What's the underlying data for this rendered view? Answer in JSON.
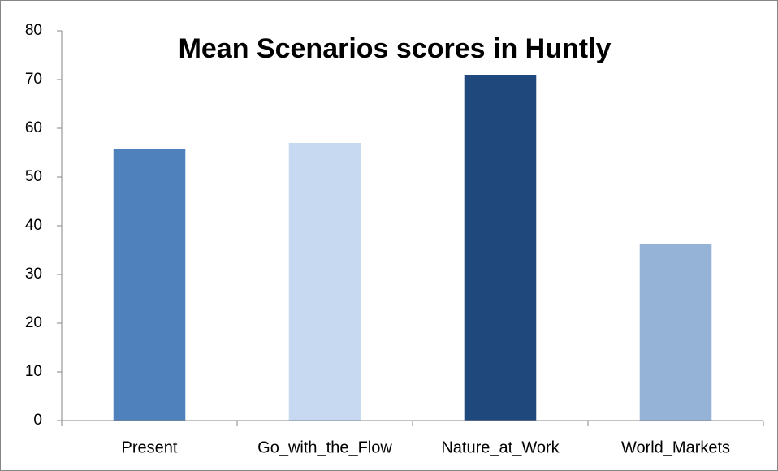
{
  "chart_data": {
    "type": "bar",
    "title": "Mean Scenarios scores in Huntly",
    "categories": [
      "Present",
      "Go_with_the_Flow",
      "Nature_at_Work",
      "World_Markets"
    ],
    "values": [
      55.8,
      57,
      71,
      36.3
    ],
    "colors": [
      "#4f81bd",
      "#c6d9f1",
      "#1f497d",
      "#95b3d7"
    ],
    "ylim": [
      0,
      80
    ],
    "yticks": [
      0,
      10,
      20,
      30,
      40,
      50,
      60,
      70,
      80
    ],
    "grid": false
  }
}
